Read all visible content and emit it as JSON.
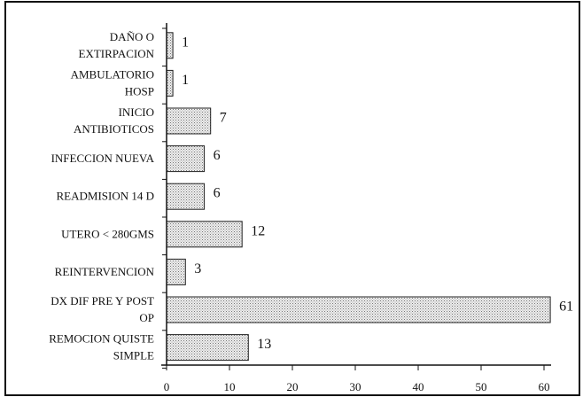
{
  "chart_data": {
    "type": "bar",
    "orientation": "horizontal",
    "title": "",
    "xlabel": "",
    "ylabel": "",
    "xlim": [
      0,
      60
    ],
    "grid": false,
    "legend": "none",
    "bar_fill": "#d9d9d9",
    "bar_stroke": "#222222",
    "categories": [
      [
        "DAÑO O",
        "EXTIRPACION"
      ],
      [
        "AMBULATORIO",
        "HOSP"
      ],
      [
        "INICIO",
        "ANTIBIOTICOS"
      ],
      [
        "INFECCION NUEVA"
      ],
      [
        "READMISION 14 D"
      ],
      [
        "UTERO < 280GMS"
      ],
      [
        "REINTERVENCION"
      ],
      [
        "DX DIF PRE Y POST",
        "OP"
      ],
      [
        "REMOCION QUISTE",
        "SIMPLE"
      ]
    ],
    "values": [
      1,
      1,
      7,
      6,
      6,
      12,
      3,
      61,
      13
    ],
    "ticks": [
      0,
      10,
      20,
      30,
      40,
      50,
      60
    ]
  }
}
